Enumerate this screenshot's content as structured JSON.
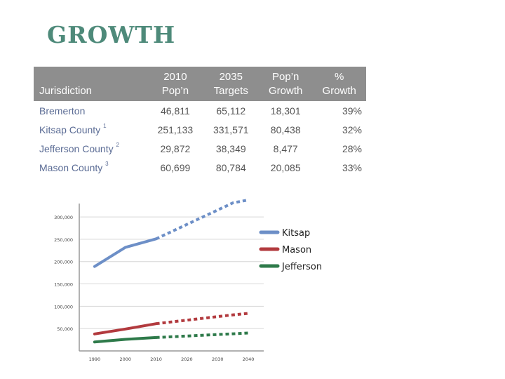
{
  "page": {
    "title": "GROWTH"
  },
  "table": {
    "headers": {
      "jurisdiction": "Jurisdiction",
      "pop2010": [
        "2010",
        "Pop’n"
      ],
      "targets2035": [
        "2035",
        "Targets"
      ],
      "growth": [
        "Pop’n",
        "Growth"
      ],
      "pct": [
        "%",
        "Growth"
      ]
    },
    "rows": [
      {
        "name": "Bremerton",
        "note": "",
        "pop2010": "46,811",
        "targets2035": "65,112",
        "growth": "18,301",
        "pct": "39%"
      },
      {
        "name": "Kitsap County",
        "note": "1",
        "pop2010": "251,133",
        "targets2035": "331,571",
        "growth": "80,438",
        "pct": "32%"
      },
      {
        "name": "Jefferson County",
        "note": "2",
        "pop2010": "29,872",
        "targets2035": "38,349",
        "growth": "8,477",
        "pct": "28%"
      },
      {
        "name": "Mason County",
        "note": "3",
        "pop2010": "60,699",
        "targets2035": "80,784",
        "growth": "20,085",
        "pct": "33%"
      }
    ]
  },
  "chart_data": {
    "type": "line",
    "title": "",
    "xlabel": "",
    "ylabel": "",
    "x": [
      1990,
      2000,
      2010,
      2020,
      2030,
      2040
    ],
    "x_tick_labels": [
      "1990",
      "2000",
      "2010",
      "2020",
      "2030",
      "2040"
    ],
    "y_ticks": [
      50000,
      100000,
      150000,
      200000,
      250000,
      300000
    ],
    "y_tick_labels": [
      "50,000",
      "100,000",
      "150,000",
      "200,000",
      "250,000",
      "300,000"
    ],
    "ylim": [
      0,
      330000
    ],
    "grid": true,
    "legend_position": "right",
    "series": [
      {
        "name": "Kitsap",
        "color": "#6d8fc7",
        "actual": [
          [
            1990,
            189000
          ],
          [
            2000,
            232000
          ],
          [
            2010,
            251000
          ]
        ],
        "projected": [
          [
            2010,
            251000
          ],
          [
            2035,
            331600
          ],
          [
            2040,
            338000
          ]
        ]
      },
      {
        "name": "Mason",
        "color": "#b23a3e",
        "actual": [
          [
            1990,
            38000
          ],
          [
            2000,
            49000
          ],
          [
            2010,
            61000
          ]
        ],
        "projected": [
          [
            2010,
            61000
          ],
          [
            2035,
            80800
          ],
          [
            2040,
            84000
          ]
        ]
      },
      {
        "name": "Jefferson",
        "color": "#2e7a4a",
        "actual": [
          [
            1990,
            20000
          ],
          [
            2000,
            26000
          ],
          [
            2010,
            30000
          ]
        ],
        "projected": [
          [
            2010,
            30000
          ],
          [
            2035,
            38300
          ],
          [
            2040,
            40000
          ]
        ]
      }
    ]
  }
}
